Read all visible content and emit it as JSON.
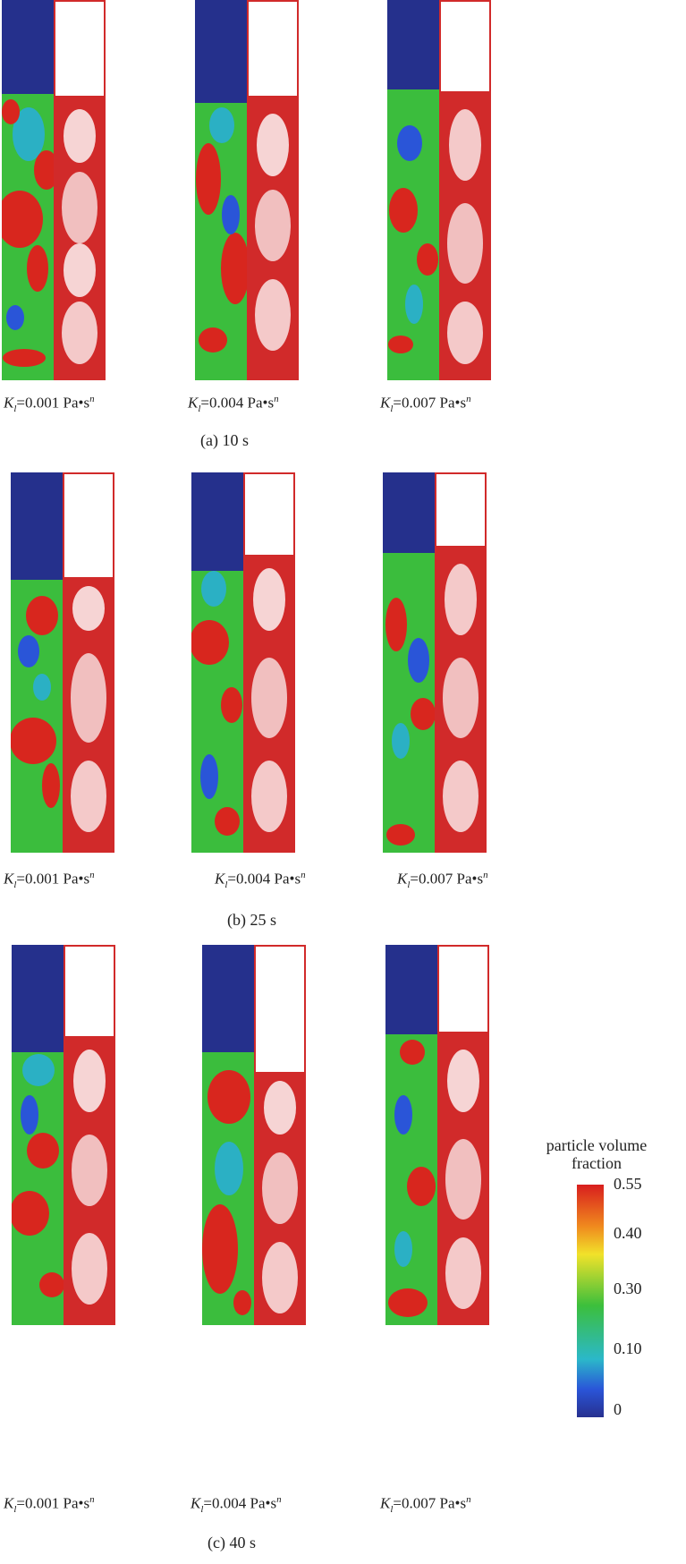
{
  "rows": [
    {
      "section_label": "(a) 10 s",
      "captions": [
        {
          "K": "K",
          "sub": "l",
          "value": "=0.001 Pa•s",
          "sup": "n"
        },
        {
          "K": "K",
          "sub": "l",
          "value": "=0.004 Pa•s",
          "sup": "n"
        },
        {
          "K": "K",
          "sub": "l",
          "value": "=0.007 Pa•s",
          "sup": "n"
        }
      ]
    },
    {
      "section_label": "(b)  25 s",
      "captions": [
        {
          "K": "K",
          "sub": "l",
          "value": "=0.001 Pa•s",
          "sup": "n"
        },
        {
          "K": "K",
          "sub": "l",
          "value": "=0.004 Pa•s",
          "sup": "n"
        },
        {
          "K": "K",
          "sub": "l",
          "value": "=0.007 Pa•s",
          "sup": "n"
        }
      ]
    },
    {
      "section_label": "(c) 40 s",
      "captions": [
        {
          "K": "K",
          "sub": "l",
          "value": "=0.001 Pa•s",
          "sup": "n"
        },
        {
          "K": "K",
          "sub": "l",
          "value": "=0.004 Pa•s",
          "sup": "n"
        },
        {
          "K": "K",
          "sub": "l",
          "value": "=0.007 Pa•s",
          "sup": "n"
        }
      ]
    }
  ],
  "colorbar": {
    "title_line1": "particle volume",
    "title_line2": "fraction",
    "ticks": [
      "0.55",
      "0.40",
      "0.30",
      "0.10",
      "0"
    ],
    "colors": {
      "high": "#d81e1e",
      "mid": "#3cbf3c",
      "low": "#27308f",
      "vector": "#d12a2a"
    }
  }
}
